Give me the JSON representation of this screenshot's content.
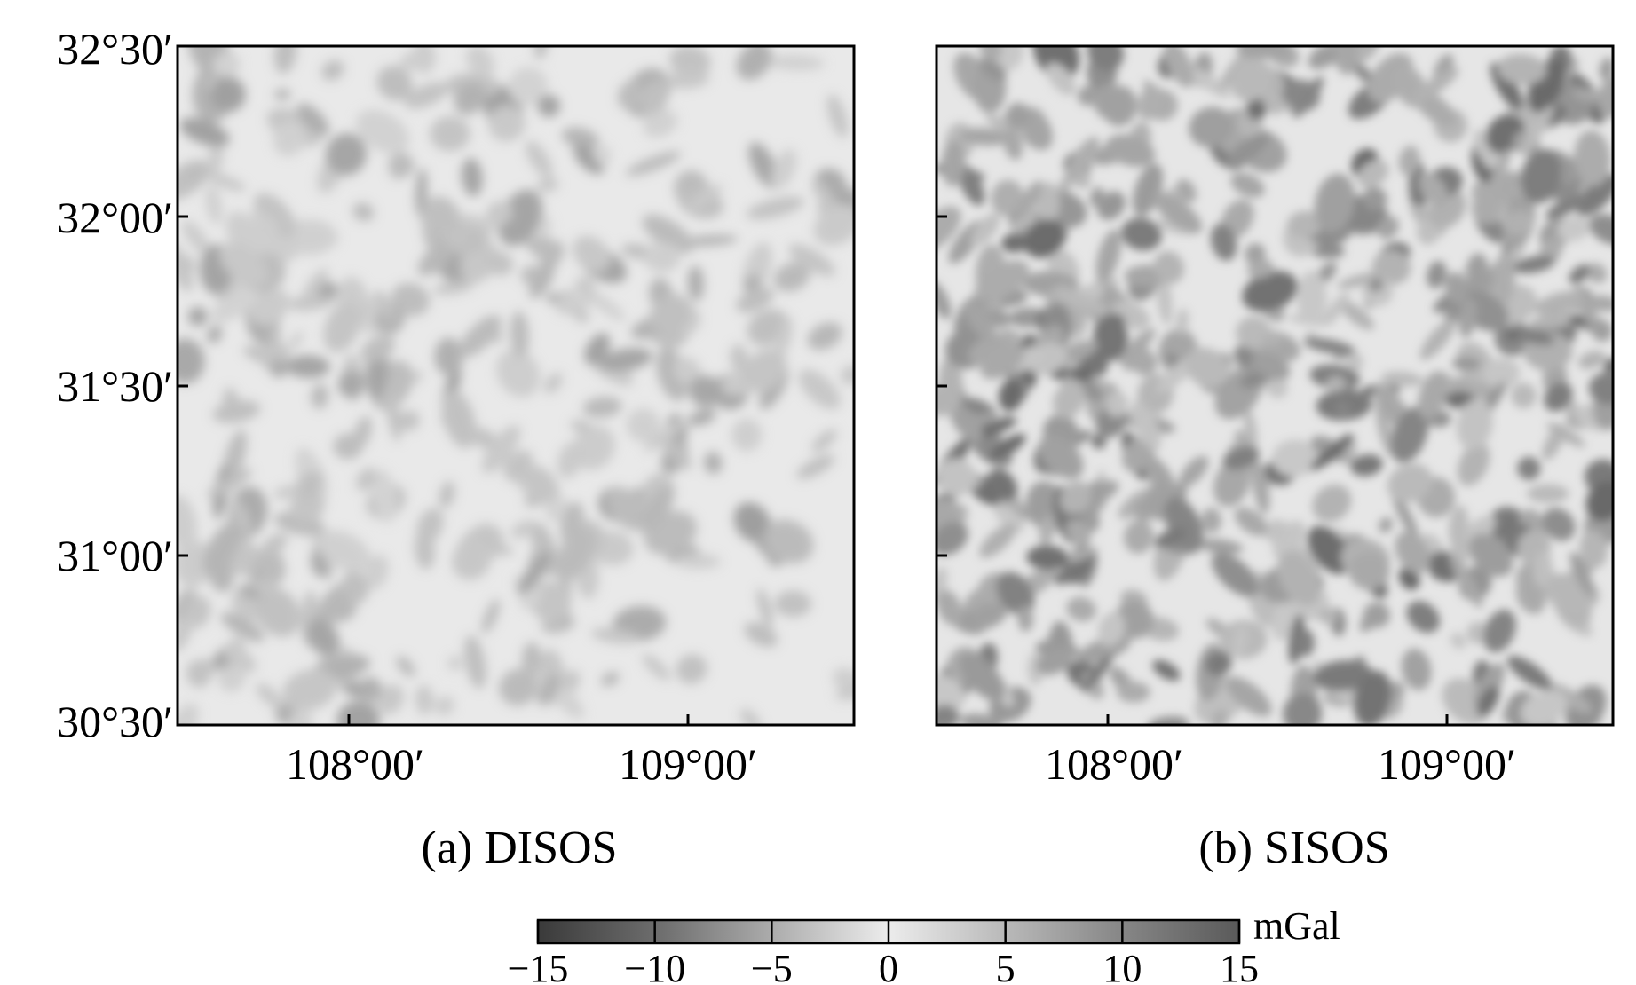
{
  "figure": {
    "panels": [
      {
        "id": "a",
        "caption": "(a) DISOS",
        "intensity": 0.55,
        "seed": 7
      },
      {
        "id": "b",
        "caption": "(b) SISOS",
        "intensity": 1.0,
        "seed": 23
      }
    ],
    "y_tick_labels": [
      "32°30′",
      "32°00′",
      "31°30′",
      "31°00′",
      "30°30′"
    ],
    "x_tick_labels": [
      "108°00′",
      "109°00′"
    ],
    "colorbar": {
      "unit": "mGal",
      "min": -15,
      "max": 15,
      "tick_labels": [
        "−15",
        "−10",
        "−5",
        "0",
        "5",
        "10",
        "15"
      ],
      "colors": {
        "low": "#3a3a3a",
        "mid": "#e8e8e8",
        "high": "#5a5a5a"
      }
    }
  }
}
